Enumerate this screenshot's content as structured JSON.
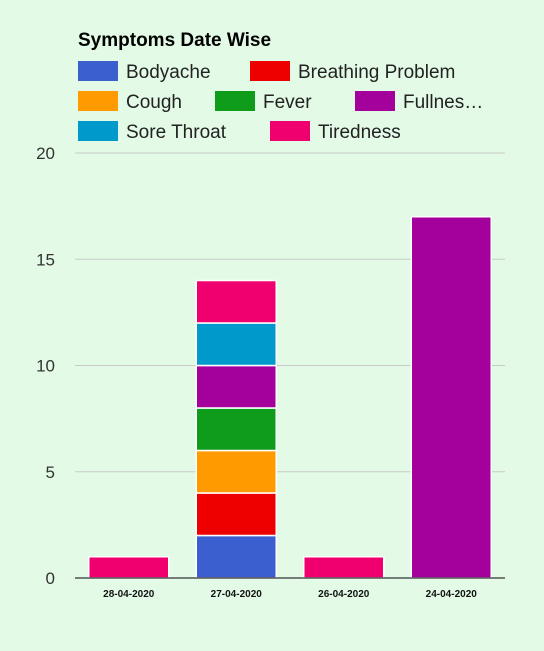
{
  "chart_data": {
    "type": "bar",
    "stacked": true,
    "title": "Symptoms Date Wise",
    "categories": [
      "28-04-2020",
      "27-04-2020",
      "26-04-2020",
      "24-04-2020"
    ],
    "series": [
      {
        "name": "Bodyache",
        "legend_label": "Bodyache",
        "color": "#3b5fcf",
        "values": [
          0,
          2,
          0,
          0
        ]
      },
      {
        "name": "Breathing Problem",
        "legend_label": "Breathing Problem",
        "color": "#ef0000",
        "values": [
          0,
          2,
          0,
          0
        ]
      },
      {
        "name": "Cough",
        "legend_label": "Cough",
        "color": "#ff9a00",
        "values": [
          0,
          2,
          0,
          0
        ]
      },
      {
        "name": "Fever",
        "legend_label": "Fever",
        "color": "#0e9c1a",
        "values": [
          0,
          2,
          0,
          0
        ]
      },
      {
        "name": "Fullness",
        "legend_label": "Fullnes…",
        "color": "#a3009c",
        "values": [
          0,
          2,
          0,
          17
        ]
      },
      {
        "name": "Sore Throat",
        "legend_label": "Sore Throat",
        "color": "#0099cc",
        "values": [
          0,
          2,
          0,
          0
        ]
      },
      {
        "name": "Tiredness",
        "legend_label": "Tiredness",
        "color": "#f0006e",
        "values": [
          1,
          2,
          1,
          0
        ]
      }
    ],
    "ylim": [
      0,
      20
    ],
    "yticks": [
      0,
      5,
      10,
      15,
      20
    ],
    "grid": true,
    "legend_position": "top",
    "xlabel": "",
    "ylabel": ""
  }
}
